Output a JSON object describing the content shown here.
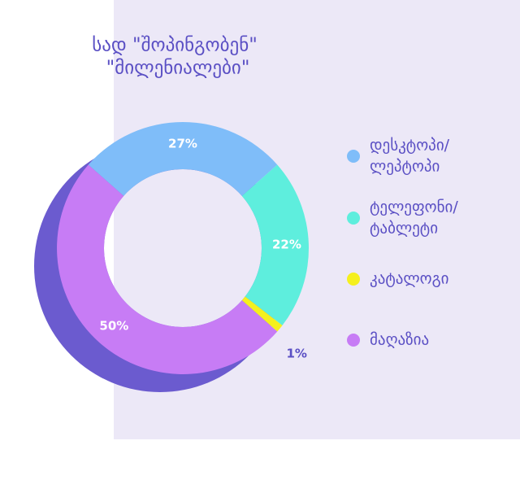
{
  "chart_data": {
    "type": "donut",
    "title": [
      "სად \"შოპინგობენ\"",
      "\"მილენიალები\""
    ],
    "categories": [
      [
        "დესკტოპი/",
        "ლეპტოპი"
      ],
      [
        "ტელეფონი/",
        "ტაბლეტი"
      ],
      [
        "კატალოგი"
      ],
      [
        "მაღაზია"
      ]
    ],
    "values": [
      27,
      22,
      1,
      50
    ],
    "value_labels": [
      "27%",
      "22%",
      "1%",
      "50%"
    ],
    "colors": [
      "#7fbdf9",
      "#5eeedd",
      "#f5f01e",
      "#c77cf5"
    ]
  }
}
